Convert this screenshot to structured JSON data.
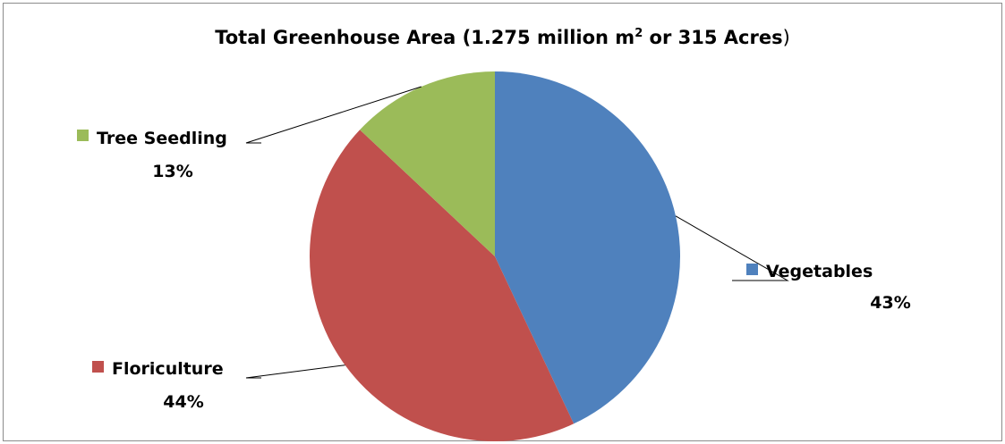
{
  "chart_data": {
    "type": "pie",
    "title": {
      "main": "Total Greenhouse Area (1.275 million m",
      "superscript": "2",
      "after": " or 315 Acres",
      "close": ")"
    },
    "slices": [
      {
        "name": "Vegetables",
        "value": 43,
        "label": "43%",
        "color": "#4f81bd"
      },
      {
        "name": "Floriculture",
        "value": 44,
        "label": "44%",
        "color": "#c0504d"
      },
      {
        "name": "Tree Seedling",
        "value": 13,
        "label": "13%",
        "color": "#9bbb59"
      }
    ],
    "start_angle_deg": 0,
    "direction": "clockwise",
    "legend": "data-labels"
  }
}
